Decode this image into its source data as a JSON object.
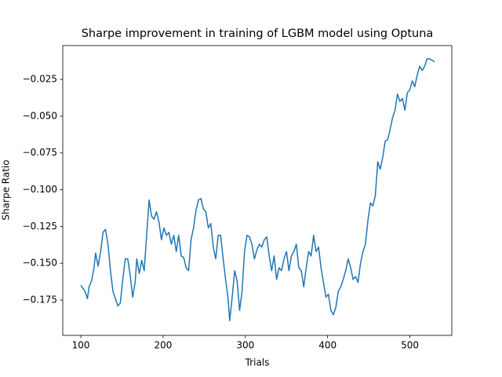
{
  "chart_data": {
    "type": "line",
    "title": "Sharpe improvement in training of LGBM model using Optuna",
    "x_label": "Trials",
    "y_label": "Sharpe Ratio",
    "x": [
      100,
      105,
      108,
      110,
      113,
      116,
      118,
      121,
      124,
      127,
      130,
      133,
      136,
      139,
      142,
      145,
      148,
      151,
      154,
      157,
      160,
      163,
      166,
      168,
      171,
      174,
      177,
      180,
      183,
      186,
      189,
      192,
      195,
      198,
      201,
      204,
      207,
      210,
      213,
      216,
      219,
      222,
      225,
      228,
      231,
      234,
      237,
      240,
      243,
      246,
      249,
      252,
      255,
      258,
      261,
      264,
      267,
      270,
      273,
      276,
      279,
      281,
      284,
      287,
      290,
      293,
      296,
      299,
      302,
      305,
      308,
      311,
      314,
      317,
      320,
      323,
      326,
      329,
      332,
      335,
      338,
      341,
      344,
      347,
      350,
      353,
      356,
      359,
      362,
      365,
      368,
      371,
      374,
      377,
      380,
      383,
      386,
      389,
      392,
      395,
      398,
      401,
      404,
      407,
      410,
      413,
      416,
      419,
      422,
      425,
      428,
      431,
      434,
      437,
      440,
      443,
      446,
      449,
      452,
      455,
      458,
      461,
      464,
      467,
      470,
      473,
      476,
      479,
      482,
      485,
      488,
      491,
      494,
      497,
      500,
      503,
      506,
      509,
      512,
      515,
      518,
      521,
      524,
      527,
      530
    ],
    "series": [
      {
        "name": "Sharpe Ratio",
        "color": "#1f77b4",
        "values": [
          -0.165,
          -0.169,
          -0.174,
          -0.166,
          -0.162,
          -0.153,
          -0.143,
          -0.152,
          -0.142,
          -0.129,
          -0.127,
          -0.137,
          -0.155,
          -0.169,
          -0.174,
          -0.179,
          -0.177,
          -0.161,
          -0.147,
          -0.147,
          -0.158,
          -0.173,
          -0.163,
          -0.147,
          -0.157,
          -0.148,
          -0.155,
          -0.131,
          -0.107,
          -0.118,
          -0.12,
          -0.115,
          -0.122,
          -0.134,
          -0.126,
          -0.131,
          -0.129,
          -0.137,
          -0.131,
          -0.142,
          -0.131,
          -0.145,
          -0.146,
          -0.153,
          -0.155,
          -0.134,
          -0.126,
          -0.114,
          -0.107,
          -0.106,
          -0.113,
          -0.115,
          -0.126,
          -0.123,
          -0.139,
          -0.147,
          -0.131,
          -0.131,
          -0.147,
          -0.161,
          -0.174,
          -0.189,
          -0.173,
          -0.155,
          -0.162,
          -0.182,
          -0.169,
          -0.142,
          -0.131,
          -0.132,
          -0.137,
          -0.147,
          -0.141,
          -0.137,
          -0.139,
          -0.134,
          -0.132,
          -0.145,
          -0.155,
          -0.145,
          -0.161,
          -0.153,
          -0.155,
          -0.147,
          -0.142,
          -0.155,
          -0.145,
          -0.142,
          -0.137,
          -0.153,
          -0.155,
          -0.166,
          -0.153,
          -0.142,
          -0.145,
          -0.131,
          -0.142,
          -0.139,
          -0.153,
          -0.163,
          -0.173,
          -0.171,
          -0.182,
          -0.185,
          -0.18,
          -0.169,
          -0.166,
          -0.161,
          -0.155,
          -0.147,
          -0.153,
          -0.161,
          -0.159,
          -0.163,
          -0.15,
          -0.142,
          -0.137,
          -0.121,
          -0.109,
          -0.111,
          -0.104,
          -0.081,
          -0.086,
          -0.078,
          -0.067,
          -0.066,
          -0.059,
          -0.051,
          -0.046,
          -0.035,
          -0.04,
          -0.038,
          -0.046,
          -0.034,
          -0.032,
          -0.026,
          -0.03,
          -0.022,
          -0.016,
          -0.019,
          -0.016,
          -0.011,
          -0.011,
          -0.012,
          -0.013
        ]
      }
    ],
    "xlim": [
      78,
      551
    ],
    "ylim": [
      -0.199,
      -0.002
    ],
    "xticks": [
      100,
      200,
      300,
      400,
      500
    ],
    "yticks": [
      {
        "value": -0.175,
        "label": "−0.175"
      },
      {
        "value": -0.15,
        "label": "−0.150"
      },
      {
        "value": -0.125,
        "label": "−0.125"
      },
      {
        "value": -0.1,
        "label": "−0.100"
      },
      {
        "value": -0.075,
        "label": "−0.075"
      },
      {
        "value": -0.05,
        "label": "−0.050"
      },
      {
        "value": -0.025,
        "label": "−0.025"
      }
    ]
  }
}
